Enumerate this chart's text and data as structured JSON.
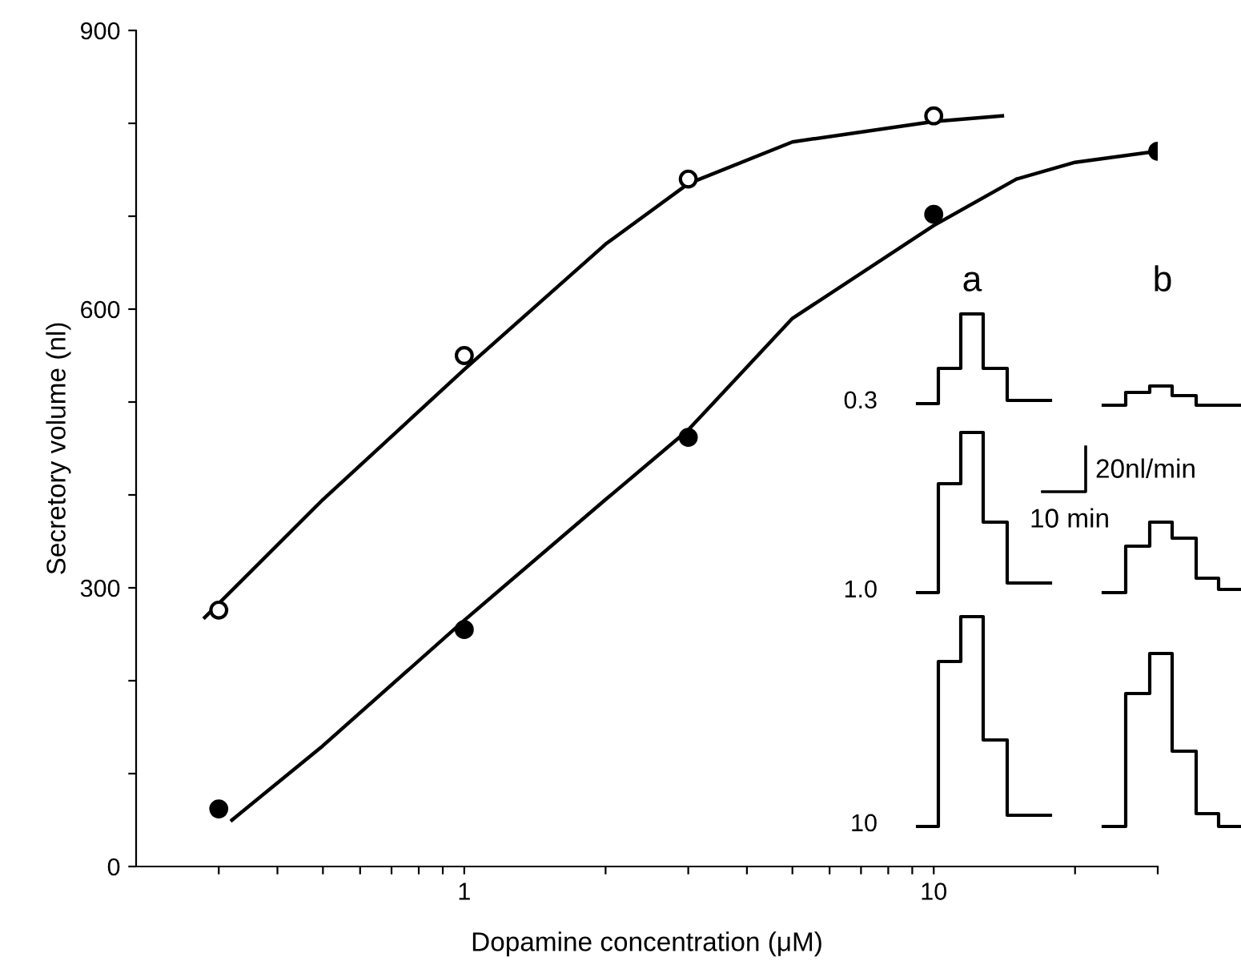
{
  "chart_data": {
    "type": "scatter",
    "xlabel": "Dopamine concentration (μM)",
    "ylabel": "Secretory volume (nl)",
    "log": "x",
    "xlim": [
      0.2,
      30
    ],
    "ylim": [
      0,
      900
    ],
    "xticks": [
      {
        "value": 0.3,
        "label": null
      },
      {
        "value": 0.4,
        "label": null
      },
      {
        "value": 0.5,
        "label": null
      },
      {
        "value": 0.6,
        "label": null
      },
      {
        "value": 0.7,
        "label": null
      },
      {
        "value": 0.8,
        "label": null
      },
      {
        "value": 0.9,
        "label": null
      },
      1,
      {
        "value": 2,
        "label": null
      },
      {
        "value": 3,
        "label": null
      },
      {
        "value": 4,
        "label": null
      },
      {
        "value": 5,
        "label": null
      },
      {
        "value": 6,
        "label": null
      },
      {
        "value": 7,
        "label": null
      },
      {
        "value": 8,
        "label": null
      },
      {
        "value": 9,
        "label": null
      },
      10,
      {
        "value": 20,
        "label": null
      },
      {
        "value": 30,
        "label": null
      }
    ],
    "yticks": [
      0,
      {
        "value": 100,
        "label": null
      },
      {
        "value": 200,
        "label": null
      },
      300,
      {
        "value": 400,
        "label": null
      },
      {
        "value": 500,
        "label": null
      },
      600,
      {
        "value": 700,
        "label": null
      },
      {
        "value": 800,
        "label": null
      },
      900
    ],
    "grid": false,
    "series": [
      {
        "type": "line",
        "color": "#000000",
        "marker": "none",
        "x": [
          0.28,
          0.5,
          1,
          2,
          3,
          5,
          10,
          14
        ],
        "values": [
          268,
          395,
          535,
          670,
          735,
          780,
          802,
          808
        ]
      },
      {
        "type": "line",
        "color": "#000000",
        "marker": "none",
        "x": [
          0.32,
          0.5,
          1,
          2,
          3,
          5,
          10,
          15,
          20,
          30
        ],
        "values": [
          50,
          130,
          265,
          395,
          470,
          590,
          690,
          740,
          758,
          770
        ]
      },
      {
        "color": "#ffffff",
        "marker": "circle",
        "x": [
          0.3,
          1,
          3,
          10
        ],
        "values": [
          276,
          550,
          740,
          808
        ]
      },
      {
        "color": "#000000",
        "marker": "circle",
        "x": [
          0.3,
          1,
          3,
          10,
          30
        ],
        "values": [
          62,
          255,
          462,
          702,
          770
        ]
      }
    ],
    "annotations": [
      "a",
      "b",
      "0.3",
      "1.0",
      "10",
      "20nl/min",
      "10 min"
    ]
  }
}
